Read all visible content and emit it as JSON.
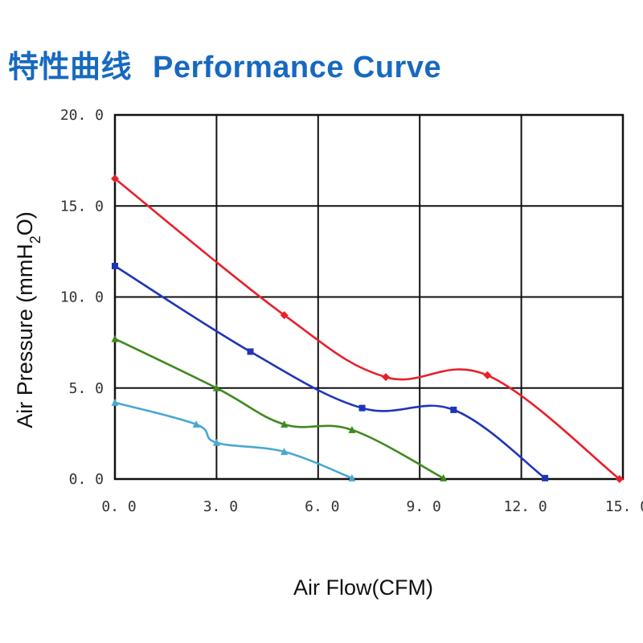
{
  "header": {
    "title_cn": "特性曲线",
    "title_en": "Performance Curve"
  },
  "chart_data": {
    "type": "line",
    "title": "特性曲线 Performance Curve",
    "xlabel": "Air Flow(CFM)",
    "ylabel_prefix": "Air Pressure (mmH",
    "ylabel_sub": "2",
    "ylabel_suffix": "O)",
    "xlim": [
      0,
      15
    ],
    "ylim": [
      0,
      20
    ],
    "xticks": [
      "0. 0",
      "3. 0",
      "6. 0",
      "9. 0",
      "12. 0",
      "15. 0"
    ],
    "xtick_values": [
      0,
      3,
      6,
      9,
      12,
      15
    ],
    "yticks": [
      "0. 0",
      "5. 0",
      "10. 0",
      "15. 0",
      "20. 0"
    ],
    "ytick_values": [
      0,
      5,
      10,
      15,
      20
    ],
    "grid": true,
    "series": [
      {
        "color": "#e8202a",
        "marker": "diamond",
        "points": [
          [
            0,
            16.5
          ],
          [
            5,
            9.0
          ],
          [
            8,
            5.6
          ],
          [
            11,
            5.7
          ],
          [
            14.9,
            0.0
          ]
        ]
      },
      {
        "color": "#1f35b8",
        "marker": "square",
        "points": [
          [
            0,
            11.7
          ],
          [
            4,
            7.0
          ],
          [
            7.3,
            3.9
          ],
          [
            10,
            3.8
          ],
          [
            12.7,
            0.05
          ]
        ]
      },
      {
        "color": "#3f8a1e",
        "marker": "triangle",
        "points": [
          [
            0,
            7.7
          ],
          [
            3,
            5.0
          ],
          [
            5,
            3.0
          ],
          [
            7,
            2.7
          ],
          [
            9.7,
            0.05
          ]
        ]
      },
      {
        "color": "#48a8d2",
        "marker": "triangle",
        "points": [
          [
            0,
            4.2
          ],
          [
            2.4,
            3.0
          ],
          [
            3,
            2.0
          ],
          [
            5,
            1.5
          ],
          [
            7,
            0.05
          ]
        ]
      }
    ]
  }
}
